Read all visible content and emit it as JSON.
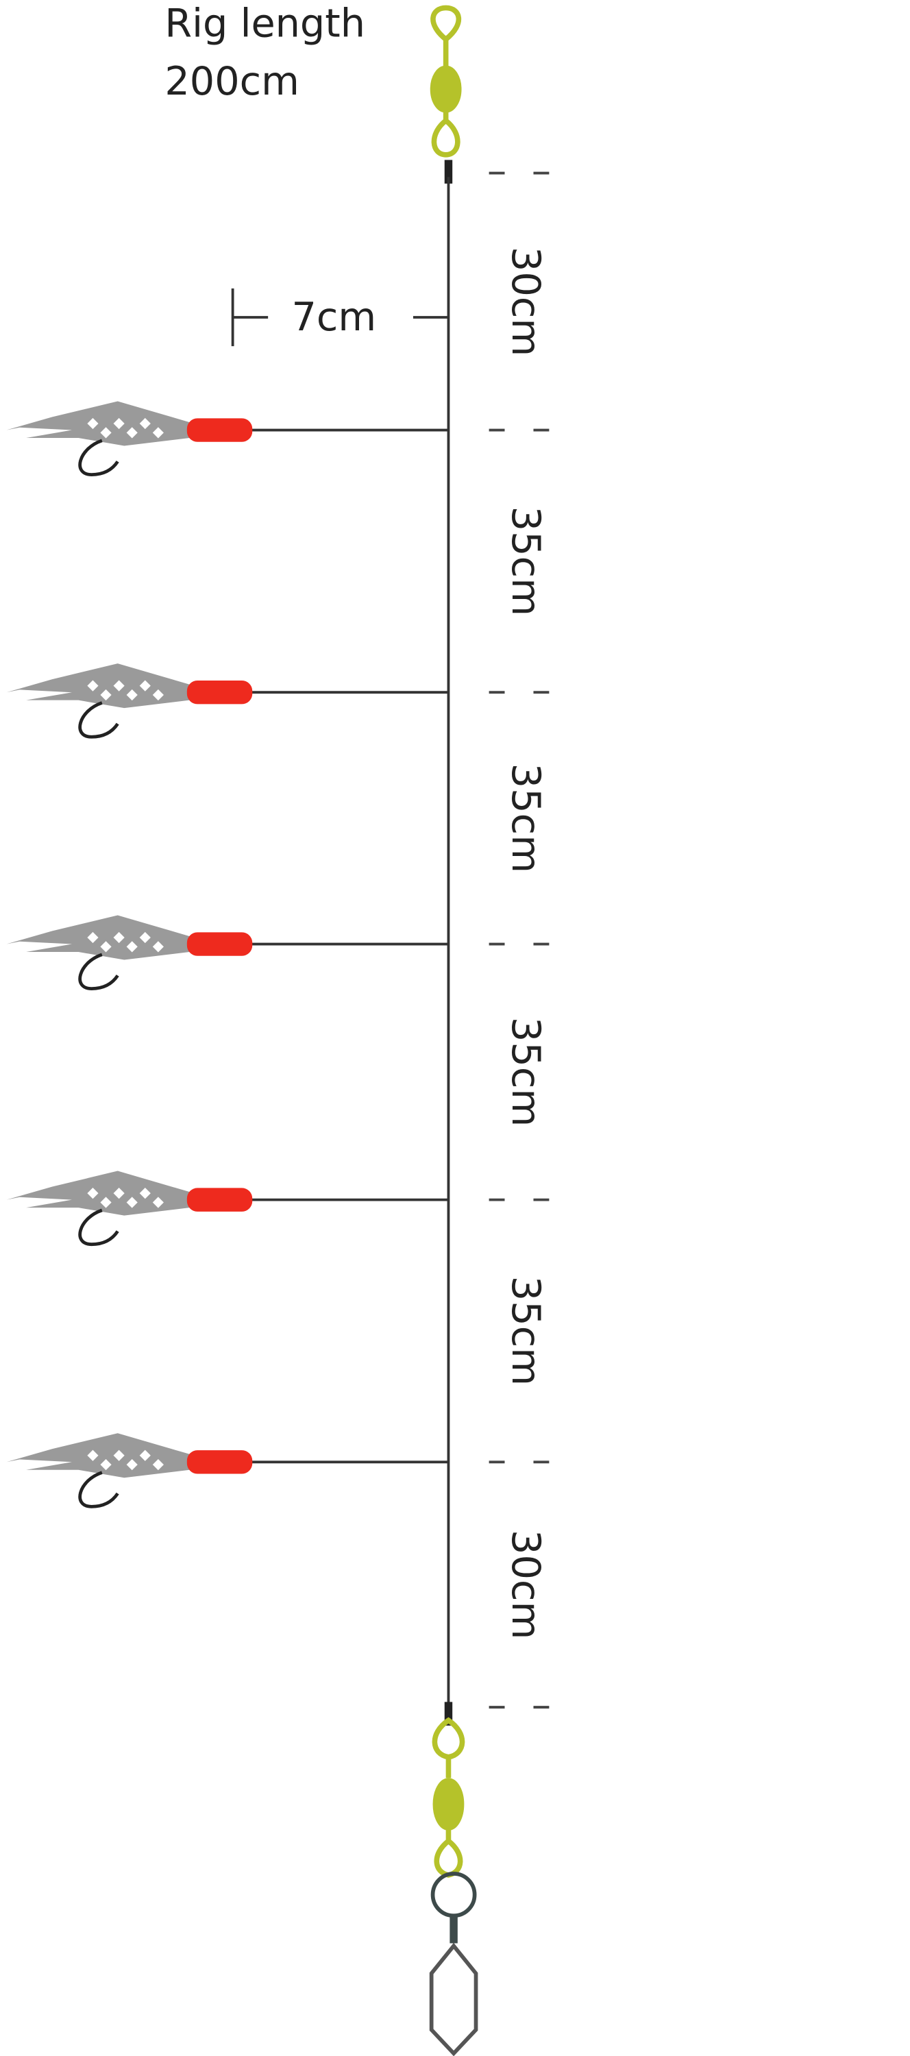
{
  "title": {
    "line1": "Rig length",
    "line2": "200cm"
  },
  "dropper_length": "7cm",
  "segments": [
    "30cm",
    "35cm",
    "35cm",
    "35cm",
    "35cm",
    "30cm"
  ]
}
